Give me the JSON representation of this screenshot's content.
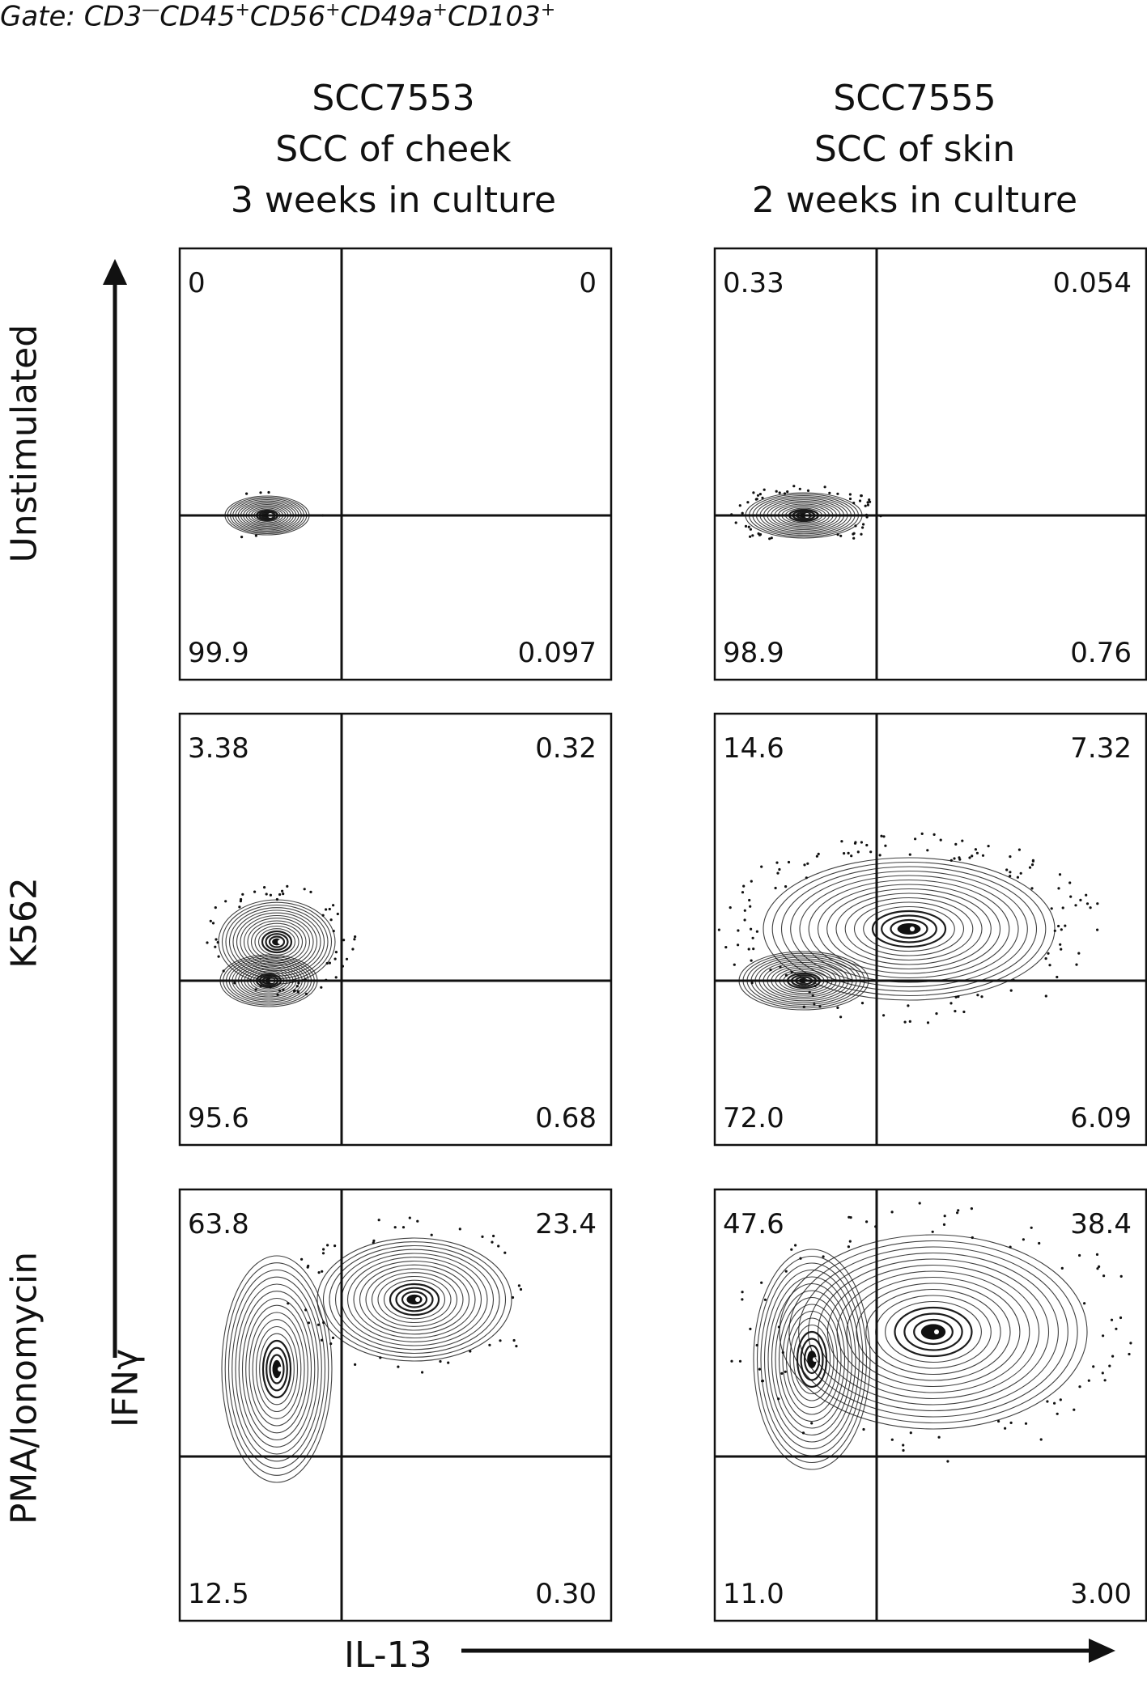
{
  "gate": {
    "prefix": "Gate: ",
    "parts": [
      {
        "text": "CD3",
        "sup": "—"
      },
      {
        "text": "CD45",
        "sup": "+"
      },
      {
        "text": "CD56",
        "sup": "+"
      },
      {
        "text": "CD49a",
        "sup": "+"
      },
      {
        "text": "CD103",
        "sup": "+"
      }
    ]
  },
  "columns": [
    {
      "lines": [
        "SCC7553",
        "SCC of cheek",
        "3 weeks in culture"
      ]
    },
    {
      "lines": [
        "SCC7555",
        "SCC of skin",
        "2 weeks in culture"
      ]
    }
  ],
  "rows": [
    "Unstimulated",
    "K562",
    "PMA/Ionomycin"
  ],
  "axes": {
    "y_label": "IFNγ",
    "x_label": "IL-13"
  },
  "colors": {
    "ink": "#111111",
    "background": "#ffffff"
  },
  "chart_data": {
    "type": "scatter",
    "subtype": "flow-cytometry contour quadrant plots",
    "grid": "3x2",
    "panels": [
      {
        "row": "Unstimulated",
        "column": "SCC7553",
        "quadrants": {
          "UL": "0",
          "UR": "0",
          "LL": "99.9",
          "LR": "0.097"
        },
        "populations": [
          {
            "cx": 0.54,
            "cy": 0.28,
            "rx": 0.26,
            "ry": 0.12
          }
        ],
        "scatter": 6
      },
      {
        "row": "Unstimulated",
        "column": "SCC7555",
        "quadrants": {
          "UL": "0.33",
          "UR": "0.054",
          "LL": "98.9",
          "LR": "0.76"
        },
        "populations": [
          {
            "cx": 0.55,
            "cy": 0.28,
            "rx": 0.36,
            "ry": 0.14
          }
        ],
        "scatter": 55
      },
      {
        "row": "K562",
        "column": "SCC7553",
        "quadrants": {
          "UL": "3.38",
          "UR": "0.32",
          "LL": "95.6",
          "LR": "0.68"
        },
        "populations": [
          {
            "cx": 0.55,
            "cy": 0.28,
            "rx": 0.3,
            "ry": 0.16
          },
          {
            "cx": 0.6,
            "cy": 0.52,
            "rx": 0.36,
            "ry": 0.26
          }
        ],
        "scatter": 60
      },
      {
        "row": "K562",
        "column": "SCC7555",
        "quadrants": {
          "UL": "14.6",
          "UR": "7.32",
          "LL": "72.0",
          "LR": "6.09"
        },
        "populations": [
          {
            "cx": 0.55,
            "cy": 0.28,
            "rx": 0.4,
            "ry": 0.18
          },
          {
            "cx": 1.2,
            "cy": 0.6,
            "rx": 0.9,
            "ry": 0.44
          }
        ],
        "scatter": 130
      },
      {
        "row": "PMA/Ionomycin",
        "column": "SCC7553",
        "quadrants": {
          "UL": "63.8",
          "UR": "23.4",
          "LL": "12.5",
          "LR": "0.30"
        },
        "populations": [
          {
            "cx": 0.6,
            "cy": 0.82,
            "rx": 0.34,
            "ry": 0.7
          },
          {
            "cx": 1.45,
            "cy": 1.25,
            "rx": 0.6,
            "ry": 0.38
          }
        ],
        "scatter": 45
      },
      {
        "row": "PMA/Ionomycin",
        "column": "SCC7555",
        "quadrants": {
          "UL": "47.6",
          "UR": "38.4",
          "LL": "11.0",
          "LR": "3.00"
        },
        "populations": [
          {
            "cx": 0.6,
            "cy": 0.88,
            "rx": 0.36,
            "ry": 0.68
          },
          {
            "cx": 1.35,
            "cy": 1.05,
            "rx": 0.95,
            "ry": 0.6
          }
        ],
        "scatter": 80
      }
    ]
  }
}
